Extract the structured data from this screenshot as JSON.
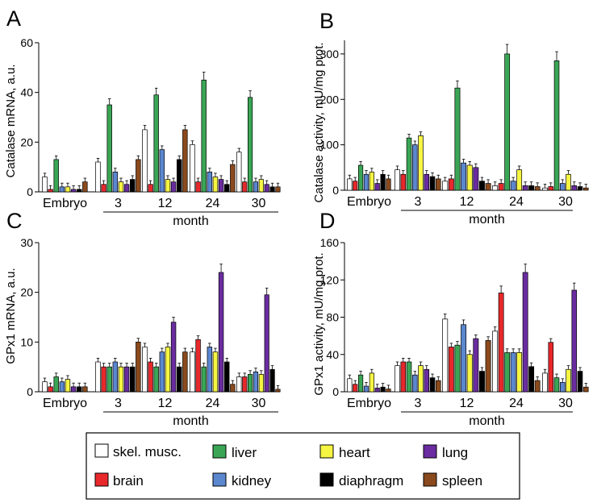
{
  "legend": [
    {
      "label": "skel. musc.",
      "color": "#ffffff"
    },
    {
      "label": "liver",
      "color": "#3aa655"
    },
    {
      "label": "heart",
      "color": "#f5f542"
    },
    {
      "label": "lung",
      "color": "#6a2ca0"
    },
    {
      "label": "brain",
      "color": "#e8282b"
    },
    {
      "label": "kidney",
      "color": "#5b87cf"
    },
    {
      "label": "diaphragm",
      "color": "#000000"
    },
    {
      "label": "spleen",
      "color": "#8b4a1d"
    }
  ],
  "chart_data": [
    {
      "panel": "A",
      "type": "bar",
      "ylabel": "Catalase mRNA, a.u.",
      "ylim": [
        0,
        60
      ],
      "yticks": [
        0,
        20,
        40,
        60
      ],
      "categories": [
        "Embryo",
        "3",
        "12",
        "24",
        "30"
      ],
      "xlabel": "month",
      "series": [
        {
          "name": "skel. musc.",
          "values": [
            6,
            12,
            25,
            19,
            16
          ]
        },
        {
          "name": "brain",
          "values": [
            1,
            3,
            3,
            4,
            4
          ]
        },
        {
          "name": "liver",
          "values": [
            13,
            35,
            39,
            45,
            38
          ]
        },
        {
          "name": "kidney",
          "values": [
            2,
            8,
            17,
            8,
            4
          ]
        },
        {
          "name": "heart",
          "values": [
            2,
            4,
            5,
            6,
            5
          ]
        },
        {
          "name": "lung",
          "values": [
            1,
            3,
            4,
            5,
            3
          ]
        },
        {
          "name": "diaphragm",
          "values": [
            1,
            5,
            13,
            3,
            2
          ]
        },
        {
          "name": "spleen",
          "values": [
            4,
            13,
            25,
            11,
            2
          ]
        }
      ]
    },
    {
      "panel": "B",
      "type": "bar",
      "ylabel": "Catalase activity, mU/mg prot.",
      "ylim": [
        0,
        330
      ],
      "yticks": [
        0,
        100,
        200,
        300
      ],
      "categories": [
        "Embryo",
        "3",
        "12",
        "24",
        "30"
      ],
      "xlabel": "month",
      "series": [
        {
          "name": "skel. musc.",
          "values": [
            25,
            45,
            20,
            10,
            5
          ]
        },
        {
          "name": "brain",
          "values": [
            20,
            35,
            25,
            15,
            8
          ]
        },
        {
          "name": "liver",
          "values": [
            55,
            115,
            225,
            300,
            285
          ]
        },
        {
          "name": "kidney",
          "values": [
            35,
            100,
            60,
            20,
            15
          ]
        },
        {
          "name": "heart",
          "values": [
            40,
            120,
            55,
            45,
            35
          ]
        },
        {
          "name": "lung",
          "values": [
            15,
            35,
            50,
            10,
            10
          ]
        },
        {
          "name": "diaphragm",
          "values": [
            35,
            30,
            20,
            10,
            8
          ]
        },
        {
          "name": "spleen",
          "values": [
            25,
            25,
            15,
            8,
            5
          ]
        }
      ]
    },
    {
      "panel": "C",
      "type": "bar",
      "ylabel": "GPx1 mRNA, a.u.",
      "ylim": [
        0,
        30
      ],
      "yticks": [
        0,
        10,
        20,
        30
      ],
      "categories": [
        "Embryo",
        "3",
        "12",
        "24",
        "30"
      ],
      "xlabel": "month",
      "series": [
        {
          "name": "skel. musc.",
          "values": [
            2,
            6,
            9,
            8,
            3
          ]
        },
        {
          "name": "brain",
          "values": [
            1,
            5,
            6,
            10.5,
            3
          ]
        },
        {
          "name": "liver",
          "values": [
            3,
            5,
            5,
            5,
            3.5
          ]
        },
        {
          "name": "kidney",
          "values": [
            2,
            6,
            8,
            9,
            4
          ]
        },
        {
          "name": "heart",
          "values": [
            2.5,
            5,
            9,
            8,
            3.5
          ]
        },
        {
          "name": "lung",
          "values": [
            1,
            5,
            14,
            24,
            19.5
          ]
        },
        {
          "name": "diaphragm",
          "values": [
            1,
            5,
            5,
            6,
            4.5
          ]
        },
        {
          "name": "spleen",
          "values": [
            1,
            10,
            8,
            1.5,
            0.5
          ]
        }
      ]
    },
    {
      "panel": "D",
      "type": "bar",
      "ylabel": "GPx1 activity, mU/mg prot.",
      "ylim": [
        0,
        160
      ],
      "yticks": [
        0,
        40,
        80,
        120,
        160
      ],
      "categories": [
        "Embryo",
        "3",
        "12",
        "24",
        "30"
      ],
      "xlabel": "month",
      "series": [
        {
          "name": "skel. musc.",
          "values": [
            14,
            28,
            78,
            65,
            20
          ]
        },
        {
          "name": "brain",
          "values": [
            8,
            32,
            48,
            106,
            53
          ]
        },
        {
          "name": "liver",
          "values": [
            18,
            32,
            50,
            42,
            15
          ]
        },
        {
          "name": "kidney",
          "values": [
            6,
            18,
            72,
            42,
            10
          ]
        },
        {
          "name": "heart",
          "values": [
            20,
            28,
            40,
            42,
            24
          ]
        },
        {
          "name": "lung",
          "values": [
            4,
            24,
            57,
            128,
            109
          ]
        },
        {
          "name": "diaphragm",
          "values": [
            5,
            15,
            22,
            27,
            22
          ]
        },
        {
          "name": "spleen",
          "values": [
            3,
            12,
            55,
            12,
            5
          ]
        }
      ]
    }
  ]
}
